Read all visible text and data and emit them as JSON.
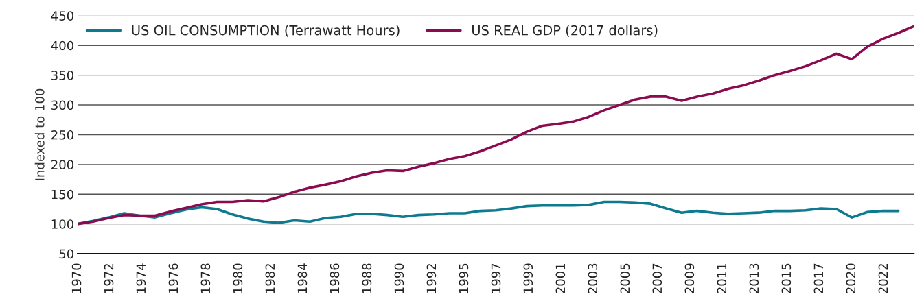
{
  "chart_data": {
    "type": "line",
    "ylabel": "Indexed to 100",
    "x": [
      "1970",
      "1971",
      "1972",
      "1973",
      "1974",
      "1975",
      "1976",
      "1977",
      "1978",
      "1979",
      "1980",
      "1981",
      "1982",
      "1983",
      "1984",
      "1985",
      "1986",
      "1987",
      "1988",
      "1989",
      "1990",
      "1991",
      "1992",
      "1993",
      "1994",
      "1995",
      "1996",
      "1997",
      "1998",
      "1999",
      "2000",
      "2001",
      "2002",
      "2003",
      "2004",
      "2005",
      "2006",
      "2007",
      "2008",
      "2009",
      "2010",
      "2011",
      "2012",
      "2013",
      "2014",
      "2015",
      "2016",
      "2017",
      "2018",
      "2019",
      "2020",
      "2021",
      "2022",
      "2023"
    ],
    "series": [
      {
        "name": "US OIL CONSUMPTION (Terrawatt Hours)",
        "color": "#0e7a8f",
        "values": [
          100,
          105,
          111,
          118,
          114,
          111,
          118,
          124,
          128,
          125,
          116,
          109,
          104,
          102,
          106,
          104,
          110,
          112,
          117,
          117,
          115,
          112,
          115,
          116,
          118,
          118,
          122,
          123,
          126,
          130,
          131,
          131,
          131,
          132,
          137,
          137,
          136,
          134,
          126,
          119,
          122,
          119,
          117,
          118,
          119,
          122,
          122,
          123,
          126,
          125,
          111,
          120,
          122,
          122
        ]
      },
      {
        "name": "US REAL GDP (2017 dollars)",
        "color": "#8b0a50",
        "x": [
          "1970",
          "1971",
          "1972",
          "1973",
          "1974",
          "1975",
          "1976",
          "1977",
          "1978",
          "1979",
          "1980",
          "1981",
          "1982",
          "1983",
          "1984",
          "1985",
          "1986",
          "1987",
          "1988",
          "1989",
          "1990",
          "1991",
          "1992",
          "1993",
          "1994",
          "1995",
          "1996",
          "1997",
          "1998",
          "1999",
          "2000",
          "2001",
          "2002",
          "2003",
          "2004",
          "2005",
          "2006",
          "2007",
          "2008",
          "2009",
          "2010",
          "2011",
          "2012",
          "2013",
          "2014",
          "2015",
          "2016",
          "2017",
          "2018",
          "2019",
          "2020",
          "2021",
          "2022",
          "2023",
          "2024"
        ],
        "values": [
          100,
          104,
          110,
          115,
          114,
          114,
          121,
          127,
          133,
          137,
          137,
          140,
          138,
          145,
          154,
          161,
          166,
          172,
          180,
          186,
          190,
          189,
          196,
          202,
          209,
          214,
          222,
          232,
          242,
          255,
          265,
          268,
          272,
          280,
          291,
          300,
          309,
          314,
          314,
          307,
          314,
          319,
          327,
          333,
          341,
          350,
          357,
          365,
          375,
          386,
          377,
          398,
          411,
          421,
          432
        ]
      }
    ],
    "xlim": [
      "1970",
      "2024"
    ],
    "xticks": [
      {
        "value": "1970-01",
        "label": "1970"
      },
      {
        "value": "1972-02",
        "label": "1972"
      },
      {
        "value": "1974-03",
        "label": "1974"
      },
      {
        "value": "1976-04",
        "label": "1976"
      },
      {
        "value": "1978-05",
        "label": "1978"
      },
      {
        "value": "1980-06",
        "label": "1980"
      },
      {
        "value": "1982-07",
        "label": "1982"
      },
      {
        "value": "1984-08",
        "label": "1984"
      },
      {
        "value": "1986-09",
        "label": "1986"
      },
      {
        "value": "1988-10",
        "label": "1988"
      },
      {
        "value": "1990-11",
        "label": "1990"
      },
      {
        "value": "1992-12",
        "label": "1992"
      },
      {
        "value": "1995-01",
        "label": "1995"
      },
      {
        "value": "1997-02",
        "label": "1997"
      },
      {
        "value": "1999-03",
        "label": "1999"
      },
      {
        "value": "2001-04",
        "label": "2001"
      },
      {
        "value": "2003-05",
        "label": "2003"
      },
      {
        "value": "2005-06",
        "label": "2005"
      },
      {
        "value": "2007-07",
        "label": "2007"
      },
      {
        "value": "2009-08",
        "label": "2009"
      },
      {
        "value": "2011-09",
        "label": "2011"
      },
      {
        "value": "2013-10",
        "label": "2013"
      },
      {
        "value": "2015-11",
        "label": "2015"
      },
      {
        "value": "2017-12",
        "label": "2017"
      },
      {
        "value": "2020-01",
        "label": "2020"
      },
      {
        "value": "2022-02",
        "label": "2022"
      }
    ],
    "ylim": [
      50,
      450
    ],
    "yticks": [
      50,
      100,
      150,
      200,
      250,
      300,
      350,
      400,
      450
    ],
    "grid": "y",
    "legend": "top left"
  }
}
